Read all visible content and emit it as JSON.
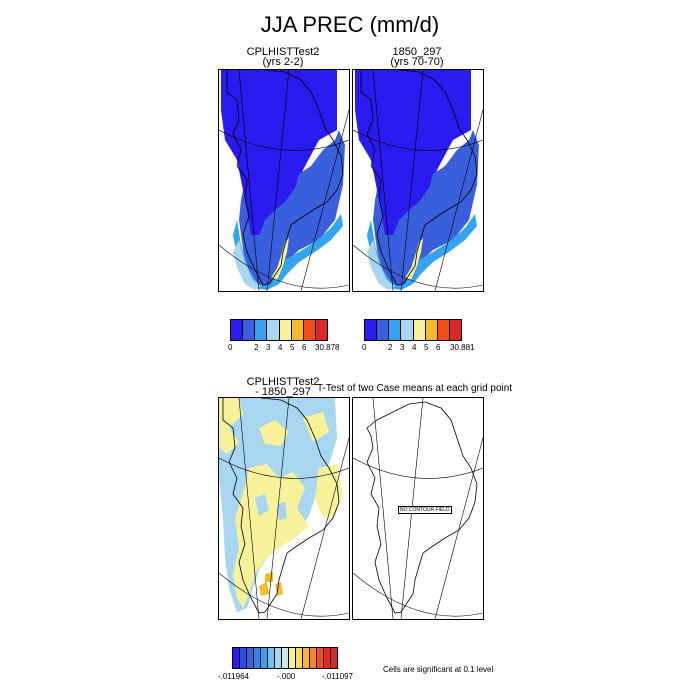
{
  "title": "JJA PREC (mm/d)",
  "panel1": {
    "title": "CPLHISTTest2",
    "subtitle": "(yrs 2-2)"
  },
  "panel2": {
    "title": "1850_297",
    "subtitle": "(yrs 70-70)"
  },
  "panel3": {
    "title": "CPLHISTTest2",
    "subtitle": "- 1850_297"
  },
  "panel4": {
    "title": "T-Test of two Case means at each grid point",
    "no_contour_label": "NO CONTOUR FIELD"
  },
  "colorbar1": {
    "colors": [
      "#2a1bf0",
      "#3a5fdc",
      "#36a3f0",
      "#a8d6f0",
      "#f7f29a",
      "#f7ba2a",
      "#f54a19",
      "#d42a2a"
    ],
    "labels": [
      "0",
      "2",
      "3",
      "4",
      "5",
      "6",
      "30.878"
    ]
  },
  "colorbar2": {
    "colors": [
      "#2a1bf0",
      "#3a5fdc",
      "#36a3f0",
      "#a8d6f0",
      "#f7f29a",
      "#f7ba2a",
      "#f54a19",
      "#d42a2a"
    ],
    "labels": [
      "0",
      "2",
      "3",
      "4",
      "5",
      "6",
      "30.881"
    ]
  },
  "colorbar3": {
    "colors": [
      "#2a1bf0",
      "#3249e0",
      "#3a64dc",
      "#3a82e8",
      "#36a3f0",
      "#6ec4f0",
      "#a8d6f0",
      "#cfe8f0",
      "#f7f29a",
      "#f7d86a",
      "#f7ba2a",
      "#f7872a",
      "#f54a19",
      "#e42a1a",
      "#d42a2a"
    ],
    "labels": [
      "-.011964",
      "-.000",
      "-.011097"
    ]
  },
  "footnote": "Cells are significant at 0.1 level",
  "legend_colors": {
    "deep_blue": "#2a1bf0",
    "mid_blue": "#3a5fdc",
    "light_blue": "#36a3f0",
    "pale_blue": "#a8d6f0",
    "yellow": "#f7f29a",
    "orange": "#f7ba2a"
  }
}
